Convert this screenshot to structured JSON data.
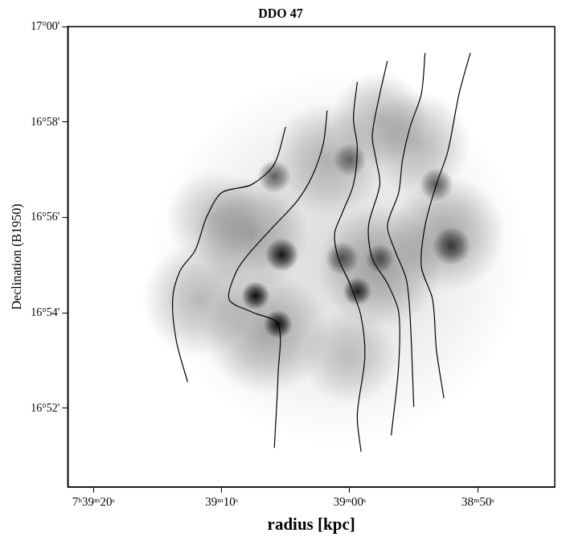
{
  "chart_data": {
    "type": "contour",
    "title": "DDO 47",
    "x_label": "radius [kpc]",
    "y_label": "Declination (B1950)",
    "xlim": [
      2362,
      2324
    ],
    "ylim": [
      50.35,
      60
    ],
    "xticks": [
      {
        "value": 2360,
        "label": "7ʰ39ᵐ20ˢ"
      },
      {
        "value": 2350,
        "label": "39ᵐ10ˢ"
      },
      {
        "value": 2340,
        "label": "39ᵐ00ˢ"
      },
      {
        "value": 2330,
        "label": "38ᵐ50ˢ"
      }
    ],
    "yticks": [
      {
        "value": 60,
        "label": "17°00'"
      },
      {
        "value": 58,
        "label": "16°58'"
      },
      {
        "value": 56,
        "label": "16°56'"
      },
      {
        "value": 54,
        "label": "16°54'"
      },
      {
        "value": 52,
        "label": "16°52'"
      }
    ],
    "grid": false,
    "color": "#000000",
    "series": [
      {
        "type": "line",
        "color": "#000000",
        "x": [
          2345.0,
          2345.88,
          2347.65,
          2350.0,
          2351.18,
          2352.06,
          2353.24,
          2353.82,
          2353.53,
          2352.65
        ],
        "values": [
          57.9,
          57.12,
          56.69,
          56.52,
          56.0,
          55.31,
          54.88,
          54.28,
          53.41,
          52.55
        ]
      },
      {
        "type": "line",
        "color": "#000000",
        "x": [
          2341.76,
          2342.06,
          2342.94,
          2344.12,
          2345.88,
          2347.65,
          2348.82,
          2349.41,
          2347.65,
          2345.59,
          2345.59,
          2345.88
        ],
        "values": [
          58.24,
          57.55,
          56.86,
          56.34,
          55.83,
          55.31,
          54.88,
          54.28,
          54.02,
          53.76,
          52.72,
          51.17
        ]
      },
      {
        "type": "line",
        "color": "#000000",
        "x": [
          2339.41,
          2339.71,
          2339.41,
          2339.71,
          2340.59,
          2341.18,
          2340.88,
          2340.0,
          2339.12,
          2338.82,
          2339.41,
          2339.12
        ],
        "values": [
          58.84,
          58.07,
          57.47,
          56.69,
          56.09,
          55.66,
          55.14,
          54.62,
          53.93,
          53.07,
          51.86,
          51.09
        ]
      },
      {
        "type": "line",
        "color": "#000000",
        "x": [
          2337.06,
          2337.65,
          2338.24,
          2337.94,
          2337.65,
          2338.53,
          2338.24,
          2337.06,
          2336.18,
          2336.18,
          2336.76
        ],
        "values": [
          59.28,
          58.59,
          57.72,
          57.21,
          56.69,
          55.83,
          55.14,
          54.62,
          54.02,
          52.9,
          51.43
        ]
      },
      {
        "type": "line",
        "color": "#000000",
        "x": [
          2334.12,
          2334.41,
          2335.29,
          2335.88,
          2336.18,
          2337.06,
          2336.47,
          2335.59,
          2335.29,
          2335.0
        ],
        "values": [
          59.45,
          58.59,
          57.9,
          57.21,
          56.52,
          55.83,
          55.31,
          54.71,
          53.93,
          52.03
        ]
      },
      {
        "type": "line",
        "color": "#000000",
        "x": [
          2330.59,
          2331.47,
          2332.35,
          2333.24,
          2334.12,
          2334.41,
          2333.53,
          2333.24,
          2332.65
        ],
        "values": [
          59.45,
          58.59,
          57.38,
          56.69,
          55.83,
          54.97,
          54.28,
          53.24,
          52.21
        ]
      }
    ],
    "clumps": {
      "x": [
        2340.88,
        2347.65,
        2346.47,
        2351.76,
        2350.59,
        2341.76,
        2334.71,
        2332.35,
        2337.65,
        2340.0,
        2337.65,
        2345.29,
        2347.35,
        2345.59,
        2339.41,
        2345.88,
        2332.06,
        2333.24,
        2340.59,
        2337.65,
        2340.0
      ],
      "y": [
        55.14,
        55.66,
        53.59,
        54.28,
        56.0,
        57.21,
        57.55,
        55.66,
        54.97,
        53.07,
        58.07,
        55.22,
        54.36,
        53.76,
        54.45,
        56.86,
        55.4,
        56.69,
        55.14,
        55.14,
        57.21
      ],
      "radius": [
        3.9,
        1.2,
        1.3,
        1.2,
        1.0,
        1.2,
        1.1,
        1.2,
        1.3,
        1.0,
        1.0,
        0.35,
        0.3,
        0.3,
        0.3,
        0.35,
        0.4,
        0.35,
        0.35,
        0.3,
        0.35
      ],
      "level": [
        0.14,
        0.3,
        0.3,
        0.25,
        0.2,
        0.25,
        0.25,
        0.3,
        0.3,
        0.2,
        0.25,
        0.9,
        0.95,
        0.95,
        0.85,
        0.6,
        0.7,
        0.6,
        0.6,
        0.55,
        0.5
      ]
    }
  }
}
